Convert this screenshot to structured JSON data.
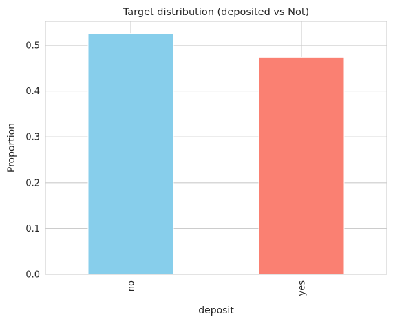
{
  "chart_data": {
    "type": "bar",
    "title": "Target distribution (deposited vs Not)",
    "xlabel": "deposit",
    "ylabel": "Proportion",
    "categories": [
      "no",
      "yes"
    ],
    "values": [
      0.526,
      0.474
    ],
    "colors": [
      "#87ceeb",
      "#fa8072"
    ],
    "ylim": [
      0,
      0.5526
    ],
    "yticks": [
      "0.0",
      "0.1",
      "0.2",
      "0.3",
      "0.4",
      "0.5"
    ],
    "grid": true,
    "legend": "none"
  }
}
